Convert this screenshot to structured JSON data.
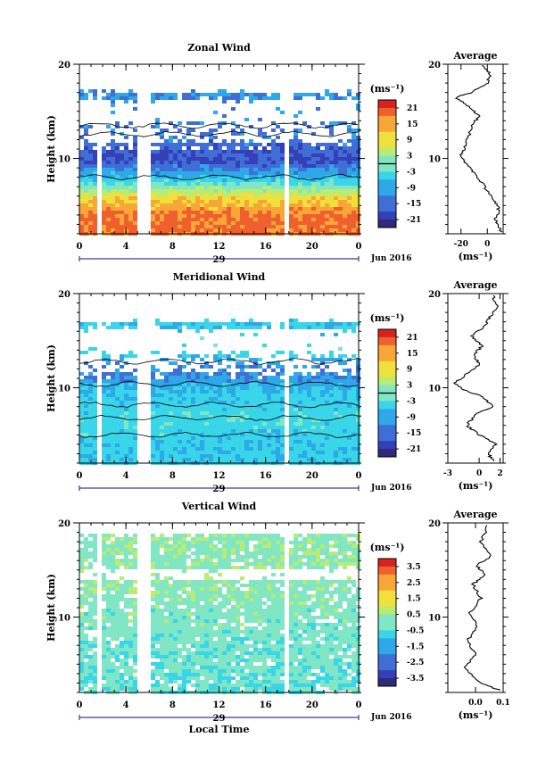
{
  "chart_data": [
    {
      "type": "heatmap",
      "title": "Zonal Wind",
      "ylabel": "Height (km)",
      "xlabel": "",
      "x_range": [
        0,
        24
      ],
      "y_range": [
        2,
        20
      ],
      "x_ticks": [
        "0",
        "4",
        "8",
        "12",
        "16",
        "20",
        "0"
      ],
      "y_ticks": [
        "10",
        "20"
      ],
      "date_mark": "29",
      "date_label": "Jun 2016",
      "colorbar": {
        "unit": "(ms⁻¹)",
        "range": [
          -24,
          24
        ],
        "ticks": [
          "21",
          "15",
          "9",
          "3",
          "-3",
          "-9",
          "-15",
          "-21"
        ]
      },
      "field": [
        {
          "height": 4,
          "value": 18
        },
        {
          "height": 6,
          "value": 10
        },
        {
          "height": 8,
          "value": -6
        },
        {
          "height": 10,
          "value": -18
        },
        {
          "height": 12,
          "value": -14
        },
        {
          "height": 16,
          "value": -12
        }
      ],
      "data_gaps_hours": [
        [
          1.4,
          1.7
        ],
        [
          4.8,
          6.0
        ],
        [
          17.6,
          18.0
        ]
      ],
      "profile": {
        "title": "Average",
        "xlabel": "(ms⁻¹)",
        "x_range": [
          -30,
          12
        ],
        "x_ticks": [
          "-20",
          "0"
        ],
        "y_ticks": [
          "10",
          "20"
        ],
        "points": [
          [
            11,
            2.2
          ],
          [
            6,
            3.5
          ],
          [
            9,
            4.5
          ],
          [
            5,
            5.5
          ],
          [
            -2,
            7
          ],
          [
            -10,
            8.5
          ],
          [
            -16,
            9.5
          ],
          [
            -20,
            10.2
          ],
          [
            -18,
            11
          ],
          [
            -15,
            12
          ],
          [
            -12,
            13.5
          ],
          [
            -6,
            14.5
          ],
          [
            -14,
            15.5
          ],
          [
            -24,
            16.5
          ],
          [
            -12,
            17
          ],
          [
            0,
            18
          ],
          [
            2,
            19
          ],
          [
            -5,
            20
          ]
        ]
      }
    },
    {
      "type": "heatmap",
      "title": "Meridional Wind",
      "ylabel": "Height (km)",
      "xlabel": "",
      "x_range": [
        0,
        24
      ],
      "y_range": [
        2,
        20
      ],
      "x_ticks": [
        "0",
        "4",
        "8",
        "12",
        "16",
        "20",
        "0"
      ],
      "y_ticks": [
        "10",
        "20"
      ],
      "date_mark": "29",
      "date_label": "Jun 2016",
      "colorbar": {
        "unit": "(ms⁻¹)",
        "range": [
          -24,
          24
        ],
        "ticks": [
          "21",
          "15",
          "9",
          "3",
          "-3",
          "-9",
          "-15",
          "-21"
        ]
      },
      "field": [
        {
          "height": 4,
          "value": -6
        },
        {
          "height": 7,
          "value": -4
        },
        {
          "height": 10,
          "value": -7
        },
        {
          "height": 12,
          "value": -14
        },
        {
          "height": 14,
          "value": -4
        },
        {
          "height": 17,
          "value": -6
        }
      ],
      "data_gaps_hours": [
        [
          1.4,
          1.7
        ],
        [
          4.8,
          6.0
        ],
        [
          17.6,
          18.0
        ]
      ],
      "profile": {
        "title": "Average",
        "xlabel": "(ms⁻¹)",
        "x_range": [
          -3,
          2.3
        ],
        "x_ticks": [
          "-3",
          "0",
          "2"
        ],
        "y_ticks": [
          "10",
          "20"
        ],
        "points": [
          [
            1.5,
            2.2
          ],
          [
            0.8,
            3
          ],
          [
            1.6,
            4
          ],
          [
            0,
            5
          ],
          [
            -1.2,
            6
          ],
          [
            -0.3,
            7.2
          ],
          [
            1.3,
            8
          ],
          [
            0.4,
            9
          ],
          [
            -1.5,
            9.8
          ],
          [
            -2.3,
            10.5
          ],
          [
            -1.2,
            11.5
          ],
          [
            0,
            12.5
          ],
          [
            -0.5,
            13.5
          ],
          [
            0.3,
            14.5
          ],
          [
            -0.8,
            15.5
          ],
          [
            0.5,
            16.5
          ],
          [
            1.0,
            17.5
          ],
          [
            1.8,
            18.5
          ],
          [
            1.2,
            20
          ]
        ]
      }
    },
    {
      "type": "heatmap",
      "title": "Vertical Wind",
      "ylabel": "Height (km)",
      "xlabel": "Local Time",
      "x_range": [
        0,
        24
      ],
      "y_range": [
        2,
        20
      ],
      "x_ticks": [
        "0",
        "4",
        "8",
        "12",
        "16",
        "20",
        "0"
      ],
      "y_ticks": [
        "10",
        "20"
      ],
      "date_mark": "29",
      "date_label": "Jun 2016",
      "colorbar": {
        "unit": "(ms⁻¹)",
        "range": [
          -4,
          4
        ],
        "ticks": [
          "3.5",
          "2.5",
          "1.5",
          "0.5",
          "-0.5",
          "-1.5",
          "-2.5",
          "-3.5"
        ]
      },
      "field": [
        {
          "height": 4,
          "value": -0.3
        },
        {
          "height": 8,
          "value": -0.1
        },
        {
          "height": 12,
          "value": 0.1
        },
        {
          "height": 16,
          "value": 0.2
        }
      ],
      "data_gaps_hours": [
        [
          1.4,
          1.7
        ],
        [
          4.8,
          6.0
        ],
        [
          17.6,
          18.0
        ]
      ],
      "profile": {
        "title": "Average",
        "xlabel": "(ms⁻¹)",
        "x_range": [
          -0.1,
          0.1
        ],
        "x_ticks": [
          "0.0",
          "0.1"
        ],
        "y_ticks": [
          "10",
          "20"
        ],
        "points": [
          [
            0.09,
            2.2
          ],
          [
            0.02,
            3
          ],
          [
            -0.04,
            4.5
          ],
          [
            0.0,
            6
          ],
          [
            -0.03,
            7.5
          ],
          [
            0.01,
            9
          ],
          [
            -0.02,
            10.5
          ],
          [
            0.02,
            12
          ],
          [
            -0.01,
            13.5
          ],
          [
            0.04,
            14.5
          ],
          [
            0.0,
            15.5
          ],
          [
            0.06,
            16.5
          ],
          [
            0.02,
            18
          ],
          [
            0.05,
            20
          ]
        ]
      }
    }
  ]
}
